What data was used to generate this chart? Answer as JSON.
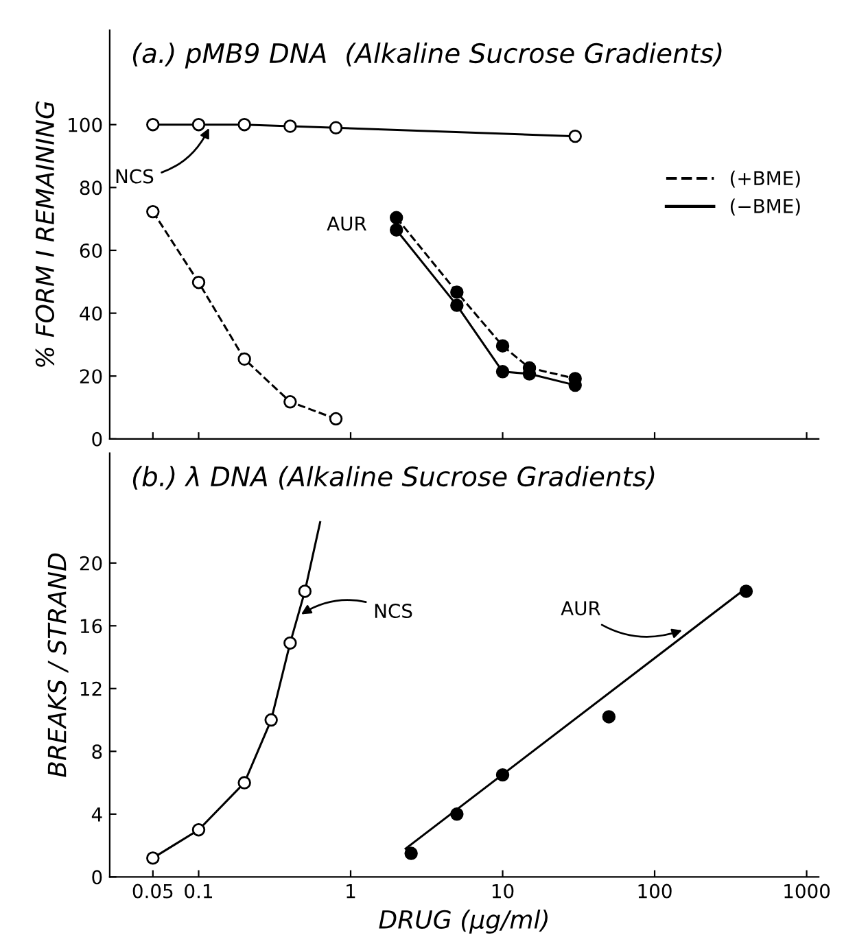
{
  "chart_data": [
    {
      "type": "line",
      "title": "(a.) pMB9 DNA  (Alkaline Sucrose Gradients)",
      "ylabel": "% FORM I REMAINING",
      "log": "x",
      "xlim": [
        0.026,
        1200
      ],
      "xticks": [
        0.05,
        0.1,
        1,
        10,
        100,
        1000
      ],
      "ylim": [
        0,
        130
      ],
      "yticks": [
        0,
        20,
        40,
        60,
        80,
        100
      ],
      "tick_labels": "y",
      "grid": false,
      "legend": "right",
      "marker": "circle",
      "series": [
        {
          "name": "(+BME)",
          "color": "#000000",
          "line_style": "dashed",
          "x": [
            0.05,
            0.1,
            0.2,
            0.4,
            0.8
          ],
          "values": [
            72.3,
            49.8,
            25.4,
            11.8,
            6.4
          ]
        },
        {
          "name": "(−BME)",
          "color": "#000000",
          "line_style": "solid",
          "x": [
            0.05,
            0.1,
            0.2,
            0.4,
            0.8,
            30
          ],
          "values": [
            100,
            100,
            100,
            99.5,
            99,
            96.3
          ]
        },
        {
          "color": "#000000",
          "line_style": "dashed",
          "x": [
            2,
            5,
            10,
            15,
            30
          ],
          "values": [
            70.4,
            46.7,
            29.6,
            22.6,
            19.2
          ]
        },
        {
          "color": "#000000",
          "line_style": "solid",
          "x": [
            2,
            5,
            10,
            15,
            30
          ],
          "values": [
            66.5,
            42.5,
            21.4,
            20.7,
            17.1
          ]
        }
      ],
      "annotations": [
        {
          "text": "NCS",
          "x": 0.12,
          "y": 100
        },
        {
          "text": "AUR",
          "x": 2,
          "y": 68
        }
      ]
    },
    {
      "type": "line",
      "title": "(b.) λ DNA (Alkaline Sucrose Gradients)",
      "xlabel": "DRUG (μg/ml)",
      "ylabel": "BREAKS / STRAND",
      "log": "x",
      "xlim": [
        0.026,
        1200
      ],
      "xticks": [
        0.05,
        0.1,
        1,
        10,
        100,
        1000
      ],
      "ylim": [
        0,
        27
      ],
      "yticks": [
        0,
        4,
        8,
        12,
        16,
        20
      ],
      "grid": false,
      "legend": false,
      "series": [
        {
          "color": "#000000",
          "line_style": "solid",
          "marker": "none",
          "x": [
            0.05,
            0.1,
            0.2,
            0.3,
            0.4,
            0.5,
            0.63
          ],
          "values": [
            1.2,
            3.0,
            6.0,
            10.0,
            14.9,
            18.2,
            22.6
          ]
        },
        {
          "type": "scatter",
          "color": "#000000",
          "marker": "circle",
          "x": [
            0.05,
            0.1,
            0.2,
            0.3,
            0.4,
            0.5
          ],
          "values": [
            1.2,
            3.0,
            6.0,
            10.0,
            14.9,
            18.2
          ]
        },
        {
          "type": "scatter",
          "color": "#000000",
          "marker": "circle",
          "x": [
            2.5,
            5,
            10,
            50,
            400
          ],
          "values": [
            1.5,
            4.0,
            6.5,
            10.2,
            18.2
          ]
        },
        {
          "color": "#000000",
          "line_style": "solid",
          "marker": "none",
          "x": [
            2.3,
            400
          ],
          "values": [
            1.8,
            18.4
          ]
        }
      ],
      "annotations": [
        {
          "text": "NCS",
          "x": 0.45,
          "y": 16.6
        },
        {
          "text": "AUR",
          "x": 160,
          "y": 15.8
        }
      ]
    }
  ]
}
